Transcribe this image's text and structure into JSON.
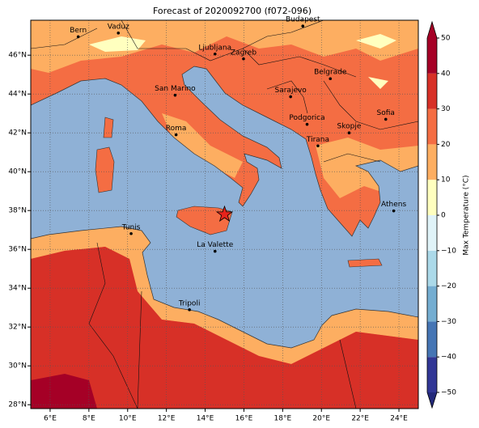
{
  "title": "Forecast of 2020092700 (f072-096)",
  "map": {
    "lon_range": [
      5,
      25
    ],
    "lat_range": [
      27.8,
      47.8
    ],
    "lon_ticks": [
      {
        "value": 6,
        "label": "6°E"
      },
      {
        "value": 8,
        "label": "8°E"
      },
      {
        "value": 10,
        "label": "10°E"
      },
      {
        "value": 12,
        "label": "12°E"
      },
      {
        "value": 14,
        "label": "14°E"
      },
      {
        "value": 16,
        "label": "16°E"
      },
      {
        "value": 18,
        "label": "18°E"
      },
      {
        "value": 20,
        "label": "20°E"
      },
      {
        "value": 22,
        "label": "22°E"
      },
      {
        "value": 24,
        "label": "24°E"
      }
    ],
    "lat_ticks": [
      {
        "value": 28,
        "label": "28°N"
      },
      {
        "value": 30,
        "label": "30°N"
      },
      {
        "value": 32,
        "label": "32°N"
      },
      {
        "value": 34,
        "label": "34°N"
      },
      {
        "value": 36,
        "label": "36°N"
      },
      {
        "value": 38,
        "label": "38°N"
      },
      {
        "value": 40,
        "label": "40°N"
      },
      {
        "value": 42,
        "label": "42°N"
      },
      {
        "value": 44,
        "label": "44°N"
      },
      {
        "value": 46,
        "label": "46°N"
      }
    ],
    "grid": true
  },
  "cities": [
    {
      "name": "Bern",
      "lon": 7.45,
      "lat": 46.95
    },
    {
      "name": "Vaduz",
      "lon": 9.52,
      "lat": 47.14
    },
    {
      "name": "Budapest",
      "lon": 19.04,
      "lat": 47.5
    },
    {
      "name": "Ljubljana",
      "lon": 14.51,
      "lat": 46.06
    },
    {
      "name": "Zagreb",
      "lon": 15.98,
      "lat": 45.81
    },
    {
      "name": "Belgrade",
      "lon": 20.46,
      "lat": 44.79
    },
    {
      "name": "San Marino",
      "lon": 12.45,
      "lat": 43.94
    },
    {
      "name": "Sarajevo",
      "lon": 18.41,
      "lat": 43.86
    },
    {
      "name": "Sofia",
      "lon": 23.32,
      "lat": 42.7
    },
    {
      "name": "Podgorica",
      "lon": 19.26,
      "lat": 42.44
    },
    {
      "name": "Skopje",
      "lon": 21.43,
      "lat": 42.0
    },
    {
      "name": "Roma",
      "lon": 12.5,
      "lat": 41.9
    },
    {
      "name": "Tirana",
      "lon": 19.82,
      "lat": 41.33
    },
    {
      "name": "Athens",
      "lon": 23.73,
      "lat": 37.98
    },
    {
      "name": "Tunis",
      "lon": 10.18,
      "lat": 36.81
    },
    {
      "name": "La Valette",
      "lon": 14.51,
      "lat": 35.9
    },
    {
      "name": "Tripoli",
      "lon": 13.19,
      "lat": 32.89
    }
  ],
  "star": {
    "lon": 15.0,
    "lat": 37.8
  },
  "colorbar": {
    "label": "Max Temperature (°C)",
    "range": [
      -50,
      50
    ],
    "ticks": [
      {
        "value": -50,
        "label": "−50"
      },
      {
        "value": -40,
        "label": "−40"
      },
      {
        "value": -30,
        "label": "−30"
      },
      {
        "value": -20,
        "label": "−20"
      },
      {
        "value": -10,
        "label": "−10"
      },
      0,
      10,
      20,
      30,
      40,
      50
    ],
    "colors": [
      "#313695",
      "#4575b4",
      "#74add1",
      "#abd9e9",
      "#e0f3f8",
      "#ffffbf",
      "#fdae61",
      "#f46d43",
      "#d73027",
      "#a50026"
    ],
    "under_color": "#23297a",
    "over_color": "#a50026"
  }
}
